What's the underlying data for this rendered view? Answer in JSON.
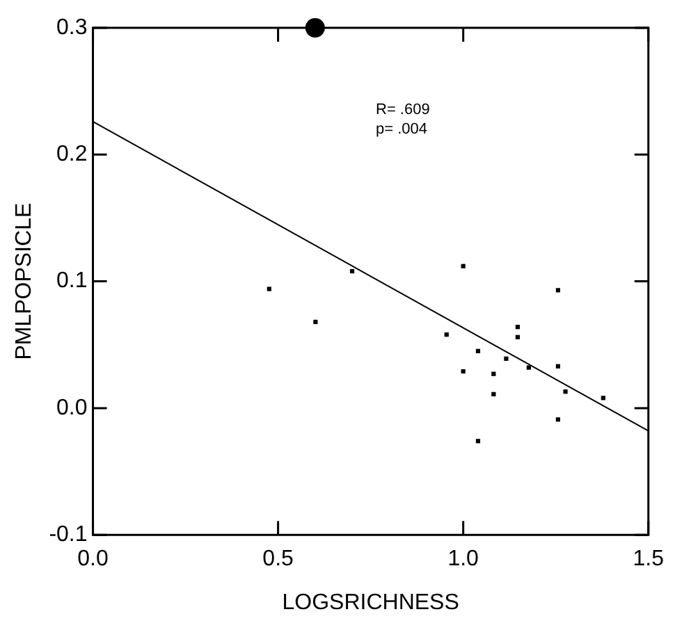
{
  "chart_data": {
    "type": "scatter",
    "xlabel": "LOGSRICHNESS",
    "ylabel": "PMLPOPSICLE",
    "xlim": [
      0,
      1.5
    ],
    "ylim": [
      -0.1,
      0.3
    ],
    "xticks": [
      {
        "value": 0,
        "label": "0.0"
      },
      {
        "value": 0.5,
        "label": "0.5"
      },
      {
        "value": 1,
        "label": "1.0"
      },
      {
        "value": 1.5,
        "label": "1.5"
      }
    ],
    "yticks": [
      {
        "value": -0.1,
        "label": "-0.1"
      },
      {
        "value": 0,
        "label": "0.0"
      },
      {
        "value": 0.1,
        "label": "0.1"
      },
      {
        "value": 0.2,
        "label": "0.2"
      },
      {
        "value": 0.3,
        "label": "0.3"
      }
    ],
    "grid": false,
    "legend": false,
    "annotations": [
      "R= .609",
      "p= .004"
    ],
    "series": [
      {
        "marker": "square",
        "color": "#000000",
        "x": [
          0.476,
          0.601,
          0.7,
          1.0,
          0.955,
          1.0,
          1.04,
          1.04,
          1.082,
          1.082,
          1.116,
          1.147,
          1.147,
          1.177,
          1.256,
          1.256,
          1.256,
          1.276,
          1.378
        ],
        "values": [
          0.094,
          0.068,
          0.108,
          0.112,
          0.058,
          0.029,
          0.045,
          -0.026,
          0.027,
          0.011,
          0.039,
          0.064,
          0.056,
          0.032,
          0.093,
          0.033,
          -0.009,
          0.013,
          0.008
        ]
      },
      {
        "type": "scatter",
        "marker": "circle",
        "color": "#000000",
        "x": [
          0.6
        ],
        "values": [
          0.3
        ]
      },
      {
        "type": "line",
        "marker": "none",
        "line_style": "solid",
        "color": "#000000",
        "x": [
          0,
          1.5
        ],
        "values": [
          0.226,
          -0.018
        ]
      }
    ]
  }
}
